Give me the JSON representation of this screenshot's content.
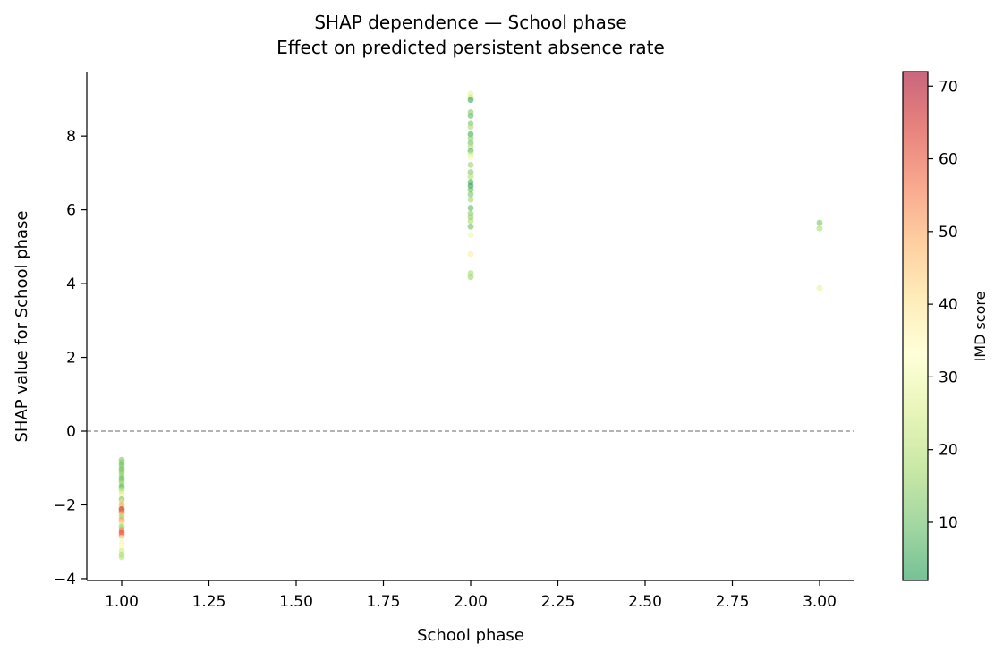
{
  "chart_data": {
    "type": "scatter",
    "title": "SHAP dependence — School phase",
    "subtitle": "Effect on predicted persistent absence rate",
    "xlabel": "School phase",
    "ylabel": "SHAP value for School phase",
    "xlim": [
      0.9,
      3.1
    ],
    "ylim": [
      -4.05,
      9.75
    ],
    "x_ticks": [
      1.0,
      1.25,
      1.5,
      1.75,
      2.0,
      2.25,
      2.5,
      2.75,
      3.0
    ],
    "x_tick_labels": [
      "1.00",
      "1.25",
      "1.50",
      "1.75",
      "2.00",
      "2.25",
      "2.50",
      "2.75",
      "3.00"
    ],
    "y_ticks": [
      -4,
      -2,
      0,
      2,
      4,
      6,
      8
    ],
    "y_tick_labels": [
      "−4",
      "−2",
      "0",
      "2",
      "4",
      "6",
      "8"
    ],
    "reference_line": {
      "y": 0,
      "style": "dashed",
      "color": "#888888"
    },
    "grid": false,
    "colorbar": {
      "label": "IMD score",
      "range": [
        2,
        72
      ],
      "ticks": [
        10,
        20,
        30,
        40,
        50,
        60,
        70
      ],
      "tick_labels": [
        "10",
        "20",
        "30",
        "40",
        "50",
        "60",
        "70"
      ],
      "colormap": [
        "#1a9850",
        "#66bd63",
        "#a6d96a",
        "#d9ef8b",
        "#ffffbf",
        "#fee08b",
        "#fdae61",
        "#f46d43",
        "#d73027",
        "#a50026"
      ],
      "opacity": 0.6
    },
    "series": [
      {
        "points": [
          {
            "x": 1,
            "y": -0.78,
            "c": 12
          },
          {
            "x": 1,
            "y": -0.85,
            "c": 14
          },
          {
            "x": 1,
            "y": -0.92,
            "c": 10
          },
          {
            "x": 1,
            "y": -1.0,
            "c": 15
          },
          {
            "x": 1,
            "y": -1.05,
            "c": 11
          },
          {
            "x": 1,
            "y": -1.12,
            "c": 13
          },
          {
            "x": 1,
            "y": -1.2,
            "c": 16
          },
          {
            "x": 1,
            "y": -1.28,
            "c": 9
          },
          {
            "x": 1,
            "y": -1.35,
            "c": 12
          },
          {
            "x": 1,
            "y": -1.42,
            "c": 18
          },
          {
            "x": 1,
            "y": -1.5,
            "c": 8
          },
          {
            "x": 1,
            "y": -1.55,
            "c": 14
          },
          {
            "x": 1,
            "y": -1.62,
            "c": 22
          },
          {
            "x": 1,
            "y": -1.7,
            "c": 28
          },
          {
            "x": 1,
            "y": -1.78,
            "c": 35
          },
          {
            "x": 1,
            "y": -1.85,
            "c": 12
          },
          {
            "x": 1,
            "y": -1.92,
            "c": 42
          },
          {
            "x": 1,
            "y": -2.0,
            "c": 50
          },
          {
            "x": 1,
            "y": -2.08,
            "c": 20
          },
          {
            "x": 1,
            "y": -2.12,
            "c": 65
          },
          {
            "x": 1,
            "y": -2.18,
            "c": 58
          },
          {
            "x": 1,
            "y": -2.25,
            "c": 47
          },
          {
            "x": 1,
            "y": -2.32,
            "c": 18
          },
          {
            "x": 1,
            "y": -2.4,
            "c": 52
          },
          {
            "x": 1,
            "y": -2.45,
            "c": 45
          },
          {
            "x": 1,
            "y": -2.52,
            "c": 25
          },
          {
            "x": 1,
            "y": -2.6,
            "c": 15
          },
          {
            "x": 1,
            "y": -2.68,
            "c": 55
          },
          {
            "x": 1,
            "y": -2.75,
            "c": 62
          },
          {
            "x": 1,
            "y": -2.82,
            "c": 57
          },
          {
            "x": 1,
            "y": -2.9,
            "c": 30
          },
          {
            "x": 1,
            "y": -3.05,
            "c": 36
          },
          {
            "x": 1,
            "y": -3.15,
            "c": 33
          },
          {
            "x": 1,
            "y": -3.25,
            "c": 24
          },
          {
            "x": 1,
            "y": -3.35,
            "c": 18
          },
          {
            "x": 1,
            "y": -3.42,
            "c": 20
          },
          {
            "x": 2,
            "y": 9.15,
            "c": 28
          },
          {
            "x": 2,
            "y": 9.05,
            "c": 24
          },
          {
            "x": 2,
            "y": 8.98,
            "c": 5
          },
          {
            "x": 2,
            "y": 8.65,
            "c": 14
          },
          {
            "x": 2,
            "y": 8.55,
            "c": 9
          },
          {
            "x": 2,
            "y": 8.35,
            "c": 12
          },
          {
            "x": 2,
            "y": 8.25,
            "c": 18
          },
          {
            "x": 2,
            "y": 8.05,
            "c": 6
          },
          {
            "x": 2,
            "y": 7.95,
            "c": 15
          },
          {
            "x": 2,
            "y": 7.82,
            "c": 11
          },
          {
            "x": 2,
            "y": 7.72,
            "c": 20
          },
          {
            "x": 2,
            "y": 7.6,
            "c": 8
          },
          {
            "x": 2,
            "y": 7.5,
            "c": 25
          },
          {
            "x": 2,
            "y": 7.42,
            "c": 31
          },
          {
            "x": 2,
            "y": 7.22,
            "c": 16
          },
          {
            "x": 2,
            "y": 7.02,
            "c": 13
          },
          {
            "x": 2,
            "y": 6.9,
            "c": 19
          },
          {
            "x": 2,
            "y": 6.75,
            "c": 7
          },
          {
            "x": 2,
            "y": 6.65,
            "c": 4
          },
          {
            "x": 2,
            "y": 6.55,
            "c": 10
          },
          {
            "x": 2,
            "y": 6.42,
            "c": 12
          },
          {
            "x": 2,
            "y": 6.28,
            "c": 17
          },
          {
            "x": 2,
            "y": 6.05,
            "c": 9
          },
          {
            "x": 2,
            "y": 5.9,
            "c": 14
          },
          {
            "x": 2,
            "y": 5.8,
            "c": 15
          },
          {
            "x": 2,
            "y": 5.7,
            "c": 18
          },
          {
            "x": 2,
            "y": 5.55,
            "c": 11
          },
          {
            "x": 2,
            "y": 5.32,
            "c": 30
          },
          {
            "x": 2,
            "y": 4.8,
            "c": 38
          },
          {
            "x": 2,
            "y": 4.28,
            "c": 18
          },
          {
            "x": 2,
            "y": 4.18,
            "c": 16
          },
          {
            "x": 3,
            "y": 5.65,
            "c": 12
          },
          {
            "x": 3,
            "y": 5.5,
            "c": 18
          },
          {
            "x": 3,
            "y": 3.88,
            "c": 28
          }
        ]
      }
    ]
  }
}
